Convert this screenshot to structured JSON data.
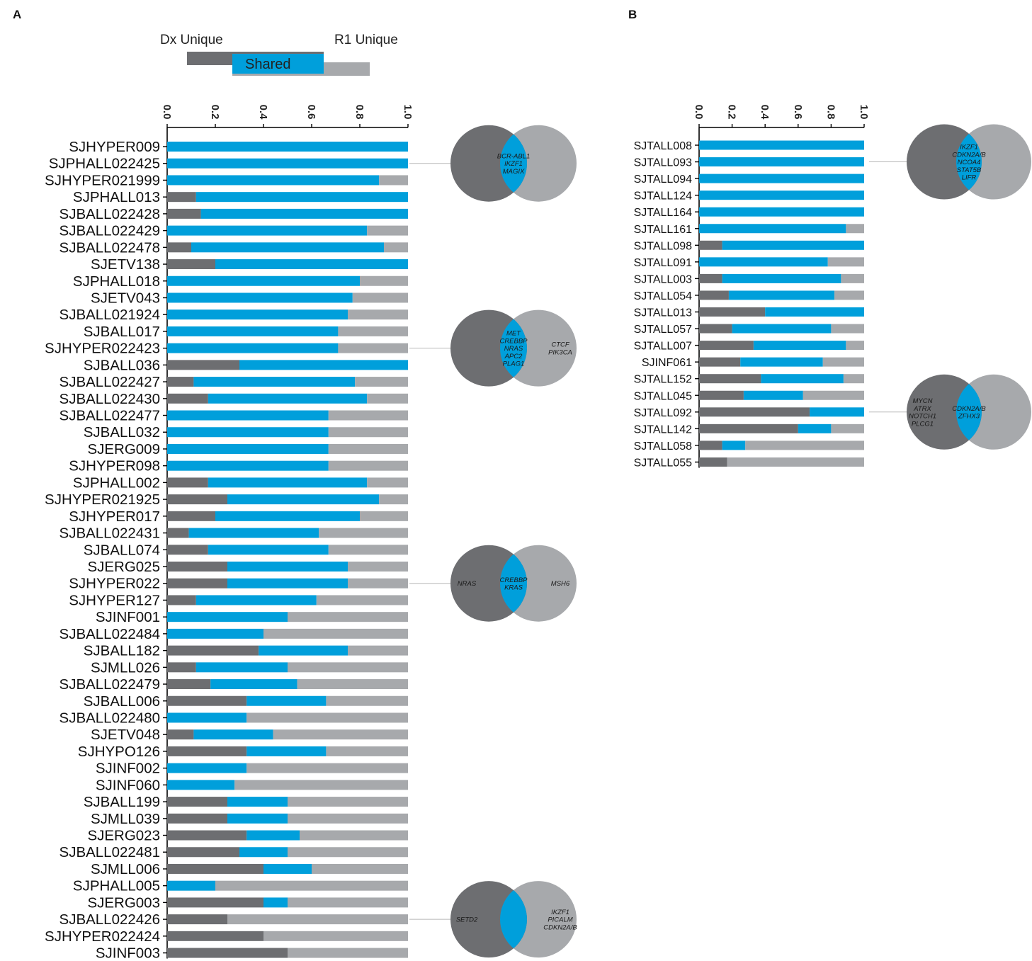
{
  "colors": {
    "dx_unique": "#6d6e71",
    "shared": "#009fdb",
    "r1_unique": "#a7a9ac"
  },
  "panels": {
    "a_label": "A",
    "b_label": "B"
  },
  "legend": {
    "dx_unique": "Dx Unique",
    "r1_unique": "R1 Unique",
    "shared": "Shared"
  },
  "chart_data": [
    {
      "type": "bar",
      "orientation": "horizontal-stacked",
      "panel": "A",
      "xlim": [
        0,
        1.0
      ],
      "xticks": [
        "0.0",
        "0.2",
        "0.4",
        "0.6",
        "0.8",
        "1.0"
      ],
      "series_order": [
        "Dx Unique",
        "Shared",
        "R1 Unique"
      ],
      "categories": [
        "SJHYPER009",
        "SJPHALL022425",
        "SJHYPER021999",
        "SJPHALL013",
        "SJBALL022428",
        "SJBALL022429",
        "SJBALL022478",
        "SJETV138",
        "SJPHALL018",
        "SJETV043",
        "SJBALL021924",
        "SJBALL017",
        "SJHYPER022423",
        "SJBALL036",
        "SJBALL022427",
        "SJBALL022430",
        "SJBALL022477",
        "SJBALL032",
        "SJERG009",
        "SJHYPER098",
        "SJPHALL002",
        "SJHYPER021925",
        "SJHYPER017",
        "SJBALL022431",
        "SJBALL074",
        "SJERG025",
        "SJHYPER022",
        "SJHYPER127",
        "SJINF001",
        "SJBALL022484",
        "SJBALL182",
        "SJMLL026",
        "SJBALL022479",
        "SJBALL006",
        "SJBALL022480",
        "SJETV048",
        "SJHYPO126",
        "SJINF002",
        "SJINF060",
        "SJBALL199",
        "SJMLL039",
        "SJERG023",
        "SJBALL022481",
        "SJMLL006",
        "SJPHALL005",
        "SJERG003",
        "SJBALL022426",
        "SJHYPER022424",
        "SJINF003"
      ],
      "series": [
        {
          "name": "Dx Unique",
          "values": [
            0,
            0,
            0,
            0.12,
            0.14,
            0,
            0.1,
            0.2,
            0,
            0,
            0,
            0,
            0,
            0.3,
            0.11,
            0.17,
            0,
            0,
            0,
            0,
            0.17,
            0.25,
            0.2,
            0.09,
            0.17,
            0.25,
            0.25,
            0.12,
            0,
            0,
            0.38,
            0.12,
            0.18,
            0.33,
            0,
            0.11,
            0.33,
            0,
            0,
            0.25,
            0.25,
            0.33,
            0.3,
            0.4,
            0,
            0.4,
            0.25,
            0.4,
            0.5
          ]
        },
        {
          "name": "Shared",
          "values": [
            1.0,
            1.0,
            0.88,
            0.88,
            0.86,
            0.83,
            0.8,
            0.8,
            0.8,
            0.77,
            0.75,
            0.71,
            0.71,
            0.7,
            0.67,
            0.66,
            0.67,
            0.67,
            0.67,
            0.67,
            0.66,
            0.63,
            0.6,
            0.54,
            0.5,
            0.5,
            0.5,
            0.5,
            0.5,
            0.4,
            0.37,
            0.38,
            0.36,
            0.33,
            0.33,
            0.33,
            0.33,
            0.33,
            0.28,
            0.25,
            0.25,
            0.22,
            0.2,
            0.2,
            0.2,
            0.1,
            0,
            0,
            0
          ]
        },
        {
          "name": "R1 Unique",
          "values": [
            0,
            0,
            0.12,
            0,
            0,
            0.17,
            0.1,
            0,
            0.2,
            0.23,
            0.25,
            0.29,
            0.29,
            0,
            0.22,
            0.17,
            0.33,
            0.33,
            0.33,
            0.33,
            0.17,
            0.12,
            0.2,
            0.37,
            0.33,
            0.25,
            0.25,
            0.38,
            0.5,
            0.6,
            0.25,
            0.5,
            0.46,
            0.34,
            0.67,
            0.56,
            0.34,
            0.67,
            0.72,
            0.5,
            0.5,
            0.45,
            0.5,
            0.4,
            0.8,
            0.5,
            0.75,
            0.6,
            0.5
          ]
        }
      ],
      "venn_annotations": [
        {
          "row": "SJPHALL022425",
          "dx_unique": [],
          "shared": [
            "BCR-ABL1",
            "IKZF1",
            "MAGIX"
          ],
          "r1_unique": []
        },
        {
          "row": "SJHYPER022423",
          "dx_unique": [],
          "shared": [
            "MET",
            "CREBBP",
            "NRAS",
            "APC2",
            "PLAG1"
          ],
          "r1_unique": [
            "CTCF",
            "PIK3CA"
          ]
        },
        {
          "row": "SJHYPER022",
          "dx_unique": [
            "NRAS"
          ],
          "shared": [
            "CREBBP",
            "KRAS"
          ],
          "r1_unique": [
            "MSH6"
          ]
        },
        {
          "row": "SJBALL022426",
          "dx_unique": [
            "SETD2"
          ],
          "shared": [],
          "r1_unique": [
            "IKZF1",
            "PICALM",
            "CDKN2A/B"
          ]
        }
      ]
    },
    {
      "type": "bar",
      "orientation": "horizontal-stacked",
      "panel": "B",
      "xlim": [
        0,
        1.0
      ],
      "xticks": [
        "0.0",
        "0.2",
        "0.4",
        "0.6",
        "0.8",
        "1.0"
      ],
      "series_order": [
        "Dx Unique",
        "Shared",
        "R1 Unique"
      ],
      "categories": [
        "SJTALL008",
        "SJTALL093",
        "SJTALL094",
        "SJTALL124",
        "SJTALL164",
        "SJTALL161",
        "SJTALL098",
        "SJTALL091",
        "SJTALL003",
        "SJTALL054",
        "SJTALL013",
        "SJTALL057",
        "SJTALL007",
        "SJINF061",
        "SJTALL152",
        "SJTALL045",
        "SJTALL092",
        "SJTALL142",
        "SJTALL058",
        "SJTALL055"
      ],
      "series": [
        {
          "name": "Dx Unique",
          "values": [
            0,
            0,
            0,
            0,
            0,
            0,
            0.14,
            0,
            0.14,
            0.18,
            0.4,
            0.2,
            0.33,
            0.25,
            0.375,
            0.27,
            0.67,
            0.6,
            0.14,
            0.17
          ]
        },
        {
          "name": "Shared",
          "values": [
            1.0,
            1.0,
            1.0,
            1.0,
            1.0,
            0.89,
            0.86,
            0.78,
            0.72,
            0.64,
            0.6,
            0.6,
            0.56,
            0.5,
            0.5,
            0.36,
            0.33,
            0.2,
            0.14,
            0
          ]
        },
        {
          "name": "R1 Unique",
          "values": [
            0,
            0,
            0,
            0,
            0,
            0.11,
            0,
            0.22,
            0.14,
            0.18,
            0,
            0.2,
            0.11,
            0.25,
            0.125,
            0.37,
            0,
            0.2,
            0.72,
            0.83
          ]
        }
      ],
      "venn_annotations": [
        {
          "row": "SJTALL093",
          "dx_unique": [],
          "shared": [
            "IKZF1",
            "CDKN2A/B",
            "NCOA4",
            "STAT5B",
            "LIFR"
          ],
          "r1_unique": []
        },
        {
          "row": "SJTALL092",
          "dx_unique": [
            "MYCN",
            "ATRX",
            "NOTCH1",
            "PLCG1"
          ],
          "shared": [
            "CDKN2A/B",
            "ZFHX3"
          ],
          "r1_unique": []
        }
      ]
    }
  ]
}
